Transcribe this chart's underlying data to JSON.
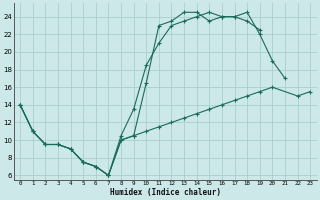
{
  "xlabel": "Humidex (Indice chaleur)",
  "bg_color": "#cce8e8",
  "grid_color": "#aacece",
  "line_color": "#1a6b5a",
  "xlim": [
    -0.5,
    23.5
  ],
  "ylim": [
    5.5,
    25.5
  ],
  "xticks": [
    0,
    1,
    2,
    3,
    4,
    5,
    6,
    7,
    8,
    9,
    10,
    11,
    12,
    13,
    14,
    15,
    16,
    17,
    18,
    19,
    20,
    21,
    22,
    23
  ],
  "yticks": [
    6,
    8,
    10,
    12,
    14,
    16,
    18,
    20,
    22,
    24
  ],
  "line1_x": [
    0,
    1,
    2,
    3,
    4,
    5,
    6,
    7,
    8,
    9,
    10,
    11,
    12,
    13,
    14,
    15,
    16,
    17,
    18,
    19,
    20,
    21
  ],
  "line1_y": [
    14,
    11,
    9.5,
    9.5,
    9,
    7.5,
    7,
    6,
    10.5,
    13.5,
    18.5,
    21,
    23,
    23.5,
    24,
    24.5,
    24,
    24,
    24.5,
    22,
    19,
    17
  ],
  "line2_x": [
    0,
    1,
    2,
    3,
    4,
    5,
    6,
    7,
    8,
    9,
    10,
    11,
    12,
    13,
    14,
    15,
    16,
    17,
    18,
    19
  ],
  "line2_y": [
    14,
    11,
    9.5,
    9.5,
    9,
    7.5,
    7,
    6,
    10,
    10.5,
    16.5,
    23,
    23.5,
    24.5,
    24.5,
    23.5,
    24,
    24,
    23.5,
    22.5
  ],
  "line3_x": [
    0,
    1,
    2,
    3,
    4,
    5,
    6,
    7,
    8,
    9,
    10,
    11,
    12,
    13,
    14,
    15,
    16,
    17,
    18,
    19,
    20,
    22,
    23
  ],
  "line3_y": [
    14,
    11,
    9.5,
    9.5,
    9,
    7.5,
    7,
    6,
    10,
    10.5,
    11,
    11.5,
    12,
    12.5,
    13,
    13.5,
    14,
    14.5,
    15,
    15.5,
    16,
    15,
    15.5
  ]
}
